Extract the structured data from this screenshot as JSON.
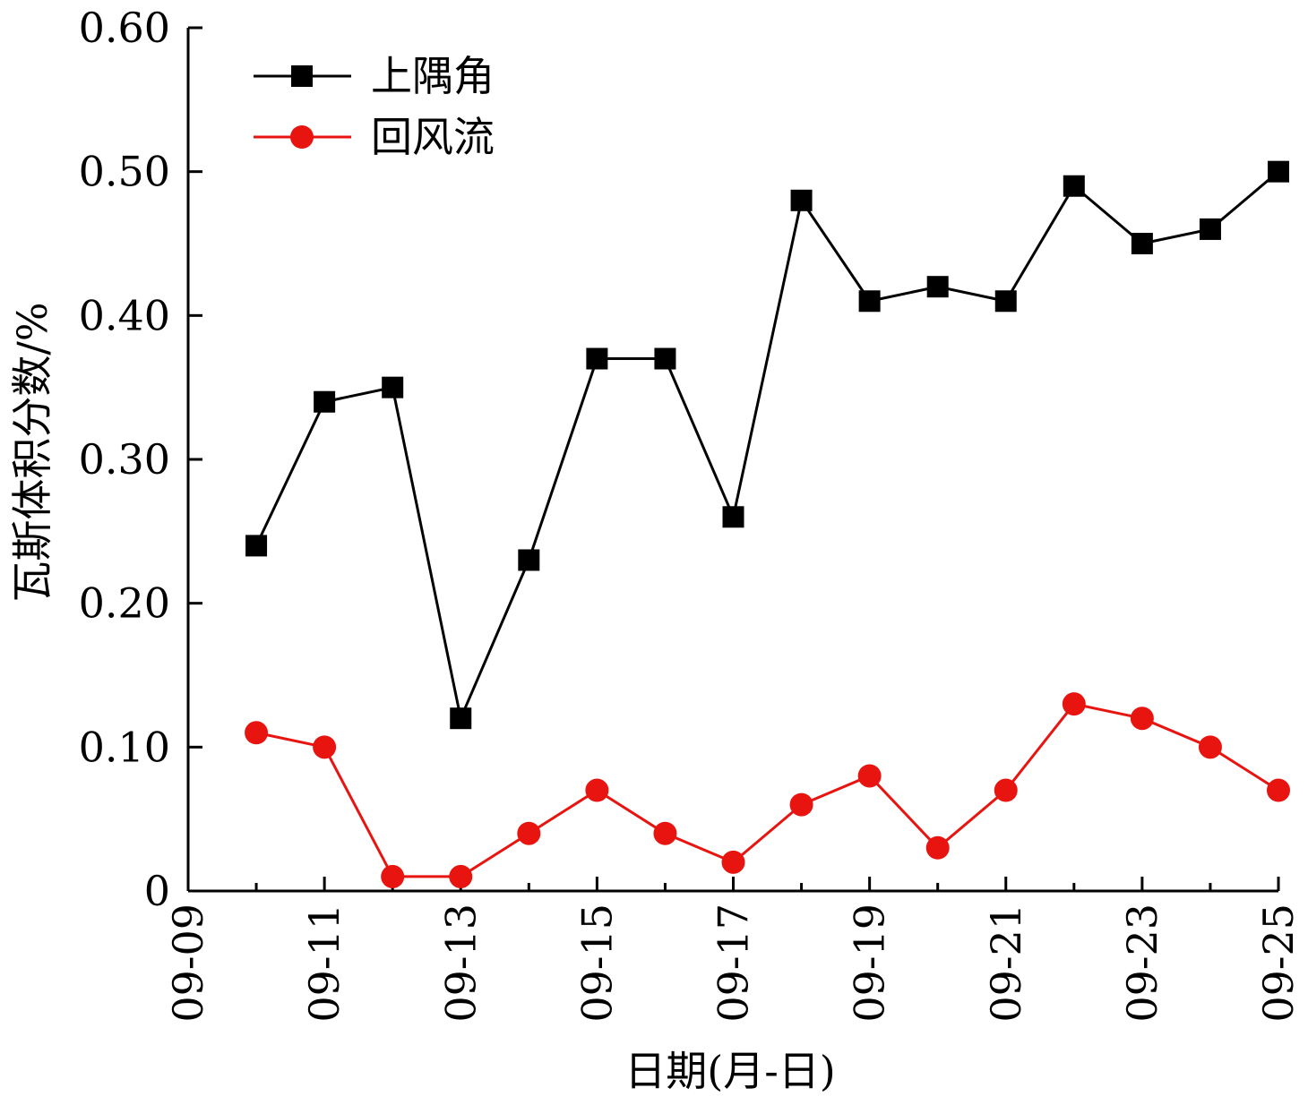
{
  "chart_data": {
    "type": "line",
    "title": "",
    "xlabel": "日期(月-日)",
    "ylabel": "瓦斯体积分数/%",
    "x_tick_labels": [
      "09-09",
      "09-11",
      "09-13",
      "09-15",
      "09-17",
      "09-19",
      "09-21",
      "09-23",
      "09-25"
    ],
    "y_tick_labels": [
      "0",
      "0.10",
      "0.20",
      "0.30",
      "0.40",
      "0.50",
      "0.60"
    ],
    "ylim": [
      0,
      0.6
    ],
    "xlim": [
      "09-09",
      "09-25"
    ],
    "x": [
      "09-10",
      "09-11",
      "09-12",
      "09-13",
      "09-14",
      "09-15",
      "09-16",
      "09-17",
      "09-18",
      "09-19",
      "09-20",
      "09-21",
      "09-22",
      "09-23",
      "09-24",
      "09-25"
    ],
    "series": [
      {
        "name": "上隅角",
        "color": "#000000",
        "marker": "square",
        "values": [
          0.24,
          0.34,
          0.35,
          0.12,
          0.23,
          0.37,
          0.37,
          0.26,
          0.48,
          0.41,
          0.42,
          0.41,
          0.49,
          0.45,
          0.46,
          0.5
        ]
      },
      {
        "name": "回风流",
        "color": "#e8140f",
        "marker": "circle",
        "values": [
          0.11,
          0.1,
          0.01,
          0.01,
          0.04,
          0.07,
          0.04,
          0.02,
          0.06,
          0.08,
          0.03,
          0.07,
          0.13,
          0.12,
          0.1,
          0.07
        ]
      }
    ],
    "legend_position": "top-left",
    "grid": false
  }
}
